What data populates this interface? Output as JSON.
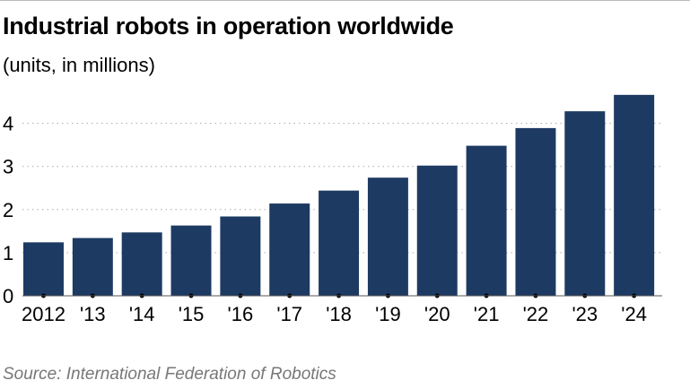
{
  "chart_data": {
    "type": "bar",
    "title": "Industrial robots in operation worldwide",
    "subtitle": "(units, in millions)",
    "source": "Source: International Federation of Robotics",
    "categories": [
      "2012",
      "'13",
      "'14",
      "'15",
      "'16",
      "'17",
      "'18",
      "'19",
      "'20",
      "'21",
      "'22",
      "'23",
      "'24"
    ],
    "values": [
      1.24,
      1.34,
      1.47,
      1.63,
      1.84,
      2.14,
      2.44,
      2.74,
      3.02,
      3.48,
      3.89,
      4.28,
      4.66
    ],
    "yticks": [
      0,
      1,
      2,
      3,
      4
    ],
    "ylim": [
      0,
      4.8
    ],
    "grid": true,
    "bar_color": "#1d3a63",
    "xlabel": "",
    "ylabel": ""
  }
}
